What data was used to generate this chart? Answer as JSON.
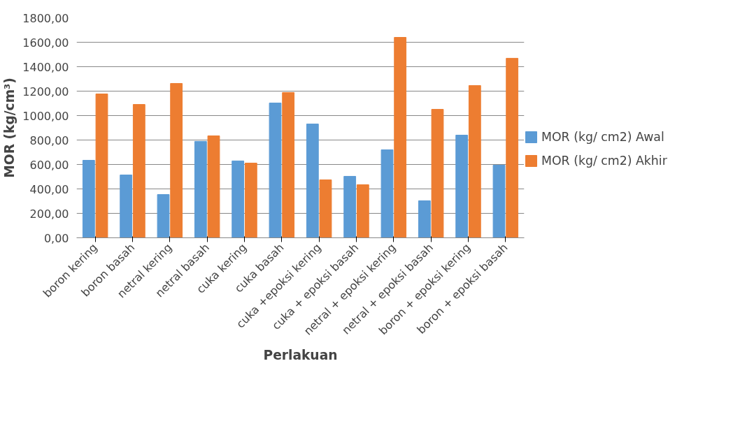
{
  "chart_data": {
    "type": "bar",
    "xlabel": "Perlakuan",
    "ylabel": "MOR (kg/cm³)",
    "categories": [
      "boron kering",
      "boron basah",
      "netral kering",
      "netral basah",
      "cuka kering",
      "cuka basah",
      "cuka +epoksi kering",
      "cuka + epoksi basah",
      "netral + epoksi kering",
      "netral + epoksi basah",
      "boron + epoksi kering",
      "boron + epoksi basah"
    ],
    "series": [
      {
        "name": "MOR (kg/ cm2) Awal",
        "color": "#5b9bd5",
        "values": [
          634,
          514,
          354,
          789,
          629,
          1103,
          931,
          503,
          720,
          303,
          840,
          594
        ]
      },
      {
        "name": "MOR (kg/ cm2) Akhir",
        "color": "#ed7d31",
        "values": [
          1177,
          1091,
          1263,
          834,
          611,
          1189,
          474,
          434,
          1640,
          1051,
          1246,
          1469
        ]
      }
    ],
    "ylim": [
      0,
      1800
    ],
    "yticks": [
      {
        "value": 0,
        "label": "0,00"
      },
      {
        "value": 200,
        "label": "200,00"
      },
      {
        "value": 400,
        "label": "400,00"
      },
      {
        "value": 600,
        "label": "600,00"
      },
      {
        "value": 800,
        "label": "800,00"
      },
      {
        "value": 1000,
        "label": "1000,00"
      },
      {
        "value": 1200,
        "label": "1200,00"
      },
      {
        "value": 1400,
        "label": "1400,00"
      },
      {
        "value": 1600,
        "label": "1600,00"
      },
      {
        "value": 1800,
        "label": "1800,00"
      }
    ],
    "grid": "y",
    "legend": "right"
  }
}
